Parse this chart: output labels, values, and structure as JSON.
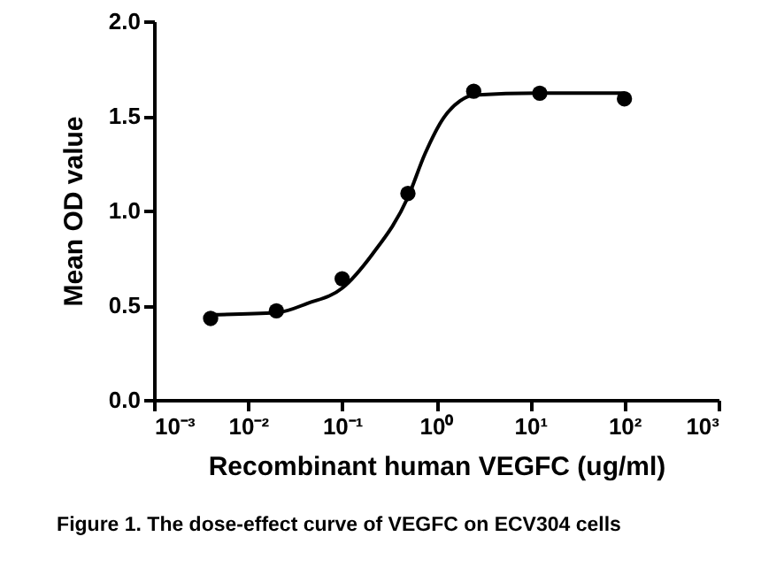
{
  "chart_data": {
    "type": "scatter",
    "title": "Figure 1. The dose-effect curve of VEGFC on ECV304 cells",
    "xlabel": "Recombinant human VEGFC (ug/ml)",
    "ylabel": "Mean OD value",
    "log": "x",
    "line_style": "solid",
    "xlim": [
      0.001,
      1000
    ],
    "xticks": [
      {
        "value": 0.001,
        "label": "10⁻³"
      },
      {
        "value": 0.01,
        "label": "10⁻²"
      },
      {
        "value": 0.1,
        "label": "10⁻¹"
      },
      {
        "value": 1,
        "label": "10⁰"
      },
      {
        "value": 10,
        "label": "10¹"
      },
      {
        "value": 100,
        "label": "10²"
      },
      {
        "value": 1000,
        "label": "10³"
      }
    ],
    "ylim": [
      0,
      2
    ],
    "yticks": [
      {
        "value": 0,
        "label": "0.0"
      },
      0.5,
      {
        "value": 1,
        "label": "1.0"
      },
      1.5,
      {
        "value": 2,
        "label": "2.0"
      }
    ],
    "series": [
      {
        "type": "line",
        "color": "#000000",
        "x": [
          0.004,
          0.02,
          0.043,
          0.1,
          0.21,
          0.5,
          0.76,
          1.2,
          1.8,
          2.5,
          12,
          100
        ],
        "values": [
          0.45,
          0.46,
          0.51,
          0.59,
          0.77,
          1.07,
          1.3,
          1.49,
          1.58,
          1.61,
          1.62,
          1.62
        ]
      },
      {
        "color": "#000000",
        "x": [
          0.004,
          0.02,
          0.1,
          0.5,
          2.5,
          12.6,
          100
        ],
        "values": [
          0.43,
          0.47,
          0.64,
          1.09,
          1.63,
          1.62,
          1.59
        ]
      }
    ]
  }
}
